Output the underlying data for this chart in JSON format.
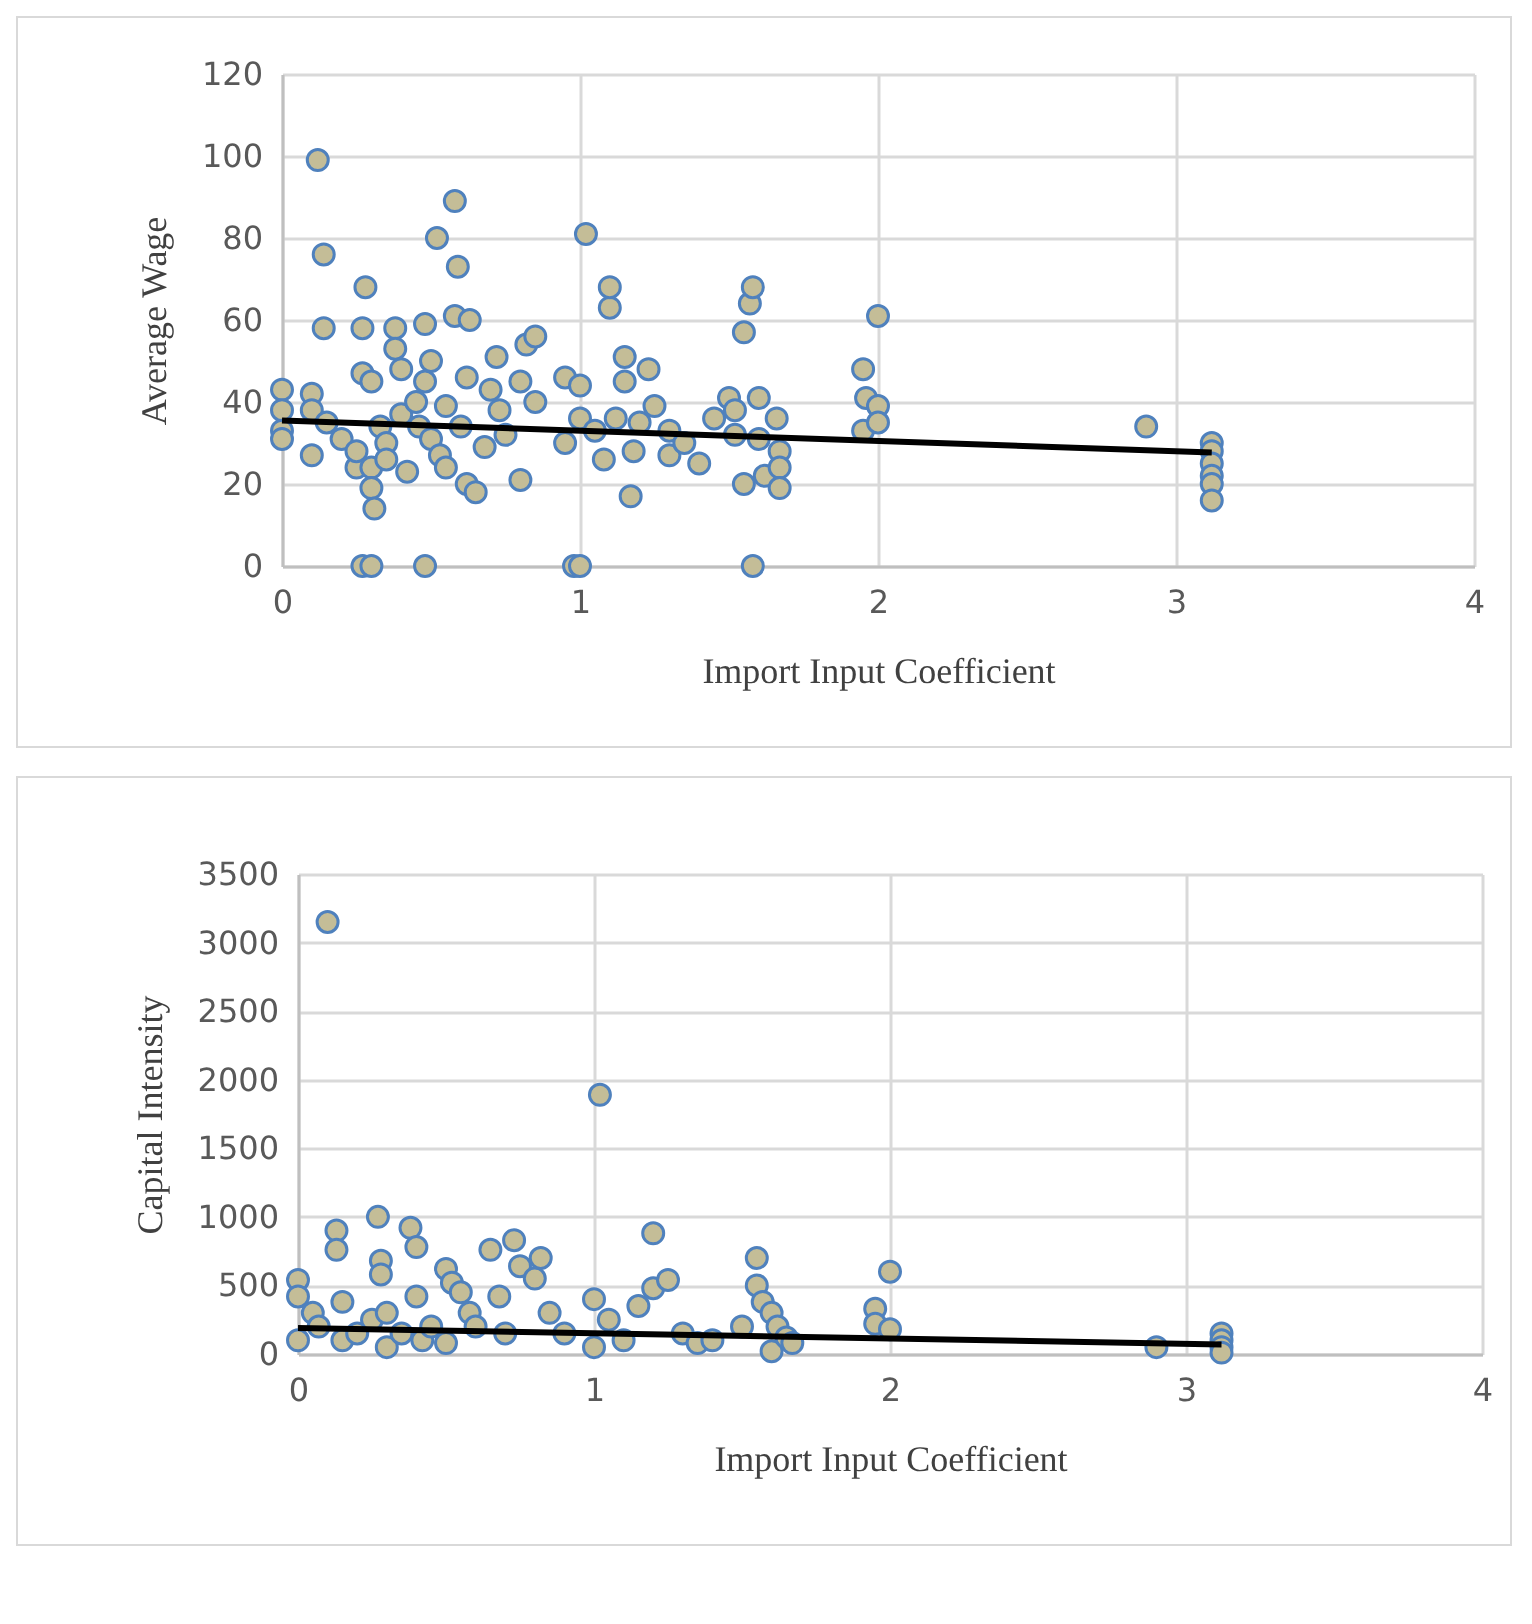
{
  "chart_data": [
    {
      "type": "scatter",
      "xlabel": "Import Input Coefficient",
      "ylabel": "Average Wage",
      "xlim": [
        0,
        4
      ],
      "xticks": [
        0,
        1,
        2,
        3,
        4
      ],
      "ylim": [
        0,
        120
      ],
      "yticks": [
        0,
        20,
        40,
        60,
        80,
        100,
        120
      ],
      "grid": true,
      "series": [
        {
          "type": "scatter",
          "marker": "circle",
          "color": "#c4bd97",
          "x": [
            0,
            0,
            0,
            0,
            0.1,
            0.1,
            0.1,
            0.12,
            0.14,
            0.14,
            0.15,
            0.2,
            0.25,
            0.25,
            0.27,
            0.27,
            0.28,
            0.27,
            0.3,
            0.3,
            0.3,
            0.3,
            0.31,
            0.33,
            0.35,
            0.35,
            0.38,
            0.38,
            0.4,
            0.4,
            0.42,
            0.45,
            0.46,
            0.48,
            0.48,
            0.48,
            0.5,
            0.5,
            0.52,
            0.53,
            0.55,
            0.55,
            0.58,
            0.58,
            0.59,
            0.6,
            0.62,
            0.62,
            0.63,
            0.65,
            0.68,
            0.7,
            0.72,
            0.73,
            0.75,
            0.8,
            0.8,
            0.82,
            0.85,
            0.85,
            0.95,
            0.95,
            0.98,
            1.0,
            1.0,
            1.0,
            1.02,
            1.05,
            1.08,
            1.1,
            1.1,
            1.12,
            1.15,
            1.15,
            1.17,
            1.18,
            1.2,
            1.23,
            1.25,
            1.3,
            1.3,
            1.35,
            1.4,
            1.45,
            1.5,
            1.52,
            1.52,
            1.55,
            1.55,
            1.57,
            1.58,
            1.58,
            1.6,
            1.6,
            1.62,
            1.66,
            1.67,
            1.67,
            1.67,
            1.95,
            1.95,
            1.96,
            2.0,
            2.0,
            2.0,
            2.9,
            3.12,
            3.12,
            3.12,
            3.12,
            3.12,
            3.12
          ],
          "values": [
            43,
            38,
            33,
            31,
            27,
            42,
            38,
            99,
            76,
            58,
            35,
            31,
            24,
            28,
            47,
            58,
            68,
            0,
            0,
            45,
            24,
            19,
            14,
            34,
            30,
            26,
            58,
            53,
            48,
            37,
            23,
            40,
            34,
            59,
            45,
            0,
            50,
            31,
            80,
            27,
            39,
            24,
            61,
            89,
            73,
            34,
            46,
            20,
            60,
            18,
            29,
            43,
            51,
            38,
            32,
            21,
            45,
            54,
            56,
            40,
            46,
            30,
            0,
            0,
            44,
            36,
            81,
            33,
            26,
            63,
            68,
            36,
            45,
            51,
            17,
            28,
            35,
            48,
            39,
            27,
            33,
            30,
            25,
            36,
            41,
            38,
            32,
            57,
            20,
            64,
            68,
            0,
            41,
            31,
            22,
            36,
            28,
            24,
            19,
            48,
            33,
            41,
            61,
            39,
            35,
            34,
            30,
            28,
            25,
            22,
            20,
            16
          ]
        },
        {
          "type": "line",
          "marker": "none",
          "color": "#000000",
          "x": [
            0,
            3.12
          ],
          "values": [
            35.5,
            27.7
          ]
        }
      ]
    },
    {
      "type": "scatter",
      "xlabel": "Import Input Coefficient",
      "ylabel": "Capital Intensity",
      "xlim": [
        0,
        4
      ],
      "xticks": [
        0,
        1,
        2,
        3,
        4
      ],
      "ylim": [
        0,
        3500
      ],
      "yticks": [
        0,
        500,
        1000,
        1500,
        2000,
        2500,
        3000,
        3500
      ],
      "grid": true,
      "series": [
        {
          "type": "scatter",
          "marker": "circle",
          "color": "#c4bd97",
          "x": [
            0,
            0,
            0,
            0.05,
            0.07,
            0.1,
            0.13,
            0.13,
            0.15,
            0.15,
            0.2,
            0.25,
            0.27,
            0.28,
            0.28,
            0.3,
            0.3,
            0.35,
            0.38,
            0.4,
            0.4,
            0.42,
            0.45,
            0.5,
            0.5,
            0.52,
            0.55,
            0.58,
            0.6,
            0.65,
            0.68,
            0.7,
            0.73,
            0.75,
            0.8,
            0.82,
            0.85,
            0.9,
            1.0,
            1.0,
            1.02,
            1.05,
            1.1,
            1.15,
            1.2,
            1.2,
            1.25,
            1.3,
            1.35,
            1.4,
            1.5,
            1.55,
            1.55,
            1.57,
            1.6,
            1.6,
            1.62,
            1.65,
            1.67,
            1.95,
            1.95,
            2.0,
            2.0,
            2.9,
            3.12,
            3.12,
            3.12,
            3.12
          ],
          "values": [
            540,
            420,
            100,
            300,
            200,
            3150,
            900,
            760,
            380,
            100,
            150,
            250,
            1000,
            680,
            580,
            50,
            300,
            150,
            920,
            780,
            420,
            100,
            200,
            620,
            80,
            520,
            450,
            300,
            200,
            760,
            420,
            150,
            830,
            640,
            550,
            700,
            300,
            150,
            400,
            50,
            1890,
            250,
            100,
            350,
            880,
            480,
            540,
            150,
            80,
            100,
            200,
            700,
            500,
            380,
            300,
            20,
            200,
            120,
            80,
            330,
            220,
            600,
            180,
            50,
            150,
            100,
            50,
            10
          ]
        },
        {
          "type": "line",
          "marker": "none",
          "color": "#000000",
          "x": [
            0,
            3.12
          ],
          "values": [
            190,
            70
          ]
        }
      ]
    }
  ]
}
